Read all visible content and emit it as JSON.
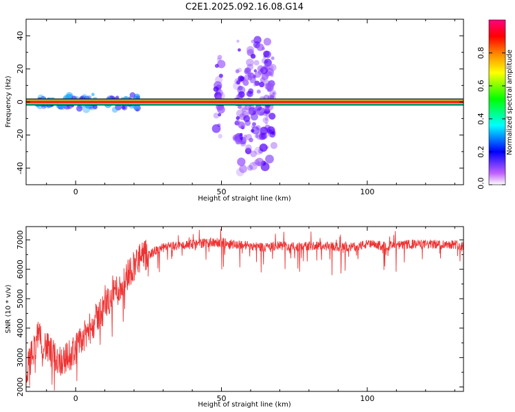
{
  "title": "C2E1.2025.092.16.08.G14",
  "chart_data": [
    {
      "type": "heatmap",
      "xlabel": "Height of straight line (km)",
      "ylabel": "Frequency (Hz)",
      "xlim": [
        -17,
        133
      ],
      "ylim": [
        -50,
        50
      ],
      "xticks": [
        0,
        50,
        100
      ],
      "yticks": [
        -40,
        -20,
        0,
        20,
        40
      ],
      "carrier_band": {
        "frequency_hz": 0,
        "x_range_km": [
          -17,
          133
        ]
      },
      "clusters": [
        {
          "x_range_km": [
            -13,
            -7
          ],
          "freq_half_width_hz": 4,
          "amplitude": 0.35
        },
        {
          "x_range_km": [
            -6,
            7
          ],
          "freq_half_width_hz": 5,
          "amplitude": 0.3
        },
        {
          "x_range_km": [
            11,
            22
          ],
          "freq_half_width_hz": 5,
          "amplitude": 0.3
        },
        {
          "x_range_km": [
            48,
            50
          ],
          "freq_half_width_hz": 33,
          "amplitude": 0.15
        },
        {
          "x_range_km": [
            55,
            68
          ],
          "freq_half_width_hz": 45,
          "amplitude": 0.15
        }
      ],
      "colorbar": {
        "label": "Normalized spectral amplitude",
        "range": [
          0,
          1
        ],
        "ticks": [
          "0.0",
          "0.2",
          "0.4",
          "0.6",
          "0.8"
        ],
        "tick_values": [
          0,
          0.2,
          0.4,
          0.6,
          0.8
        ],
        "colors": [
          "#ffffff",
          "#c060ff",
          "#0000ff",
          "#00ffff",
          "#00ff00",
          "#ffff00",
          "#ff8000",
          "#ff0000",
          "#ff0080"
        ]
      }
    },
    {
      "type": "line",
      "xlabel": "Height of straight line (km)",
      "ylabel": "SNR (10 * v/v)",
      "xlim": [
        -17,
        133
      ],
      "ylim": [
        1850,
        7450
      ],
      "xticks": [
        0,
        50,
        100
      ],
      "yticks": [
        2000,
        3000,
        4000,
        5000,
        6000,
        7000
      ],
      "color": "#ee3333",
      "x": [
        -17,
        -15,
        -13,
        -11,
        -9,
        -7,
        -5,
        -3,
        -1,
        1,
        3,
        5,
        7,
        9,
        11,
        13,
        15,
        17,
        19,
        21,
        23,
        25,
        27,
        29,
        31,
        35,
        40,
        45,
        50,
        55,
        60,
        65,
        70,
        75,
        80,
        85,
        90,
        95,
        100,
        105,
        110,
        115,
        120,
        125,
        130,
        133
      ],
      "y": [
        2500,
        3100,
        3700,
        3500,
        3200,
        3000,
        2900,
        3000,
        3200,
        3400,
        3700,
        4000,
        4300,
        4600,
        4900,
        5300,
        5300,
        5700,
        6000,
        6300,
        6400,
        6500,
        6600,
        6700,
        6750,
        6800,
        6850,
        6900,
        6900,
        6850,
        6800,
        6750,
        6800,
        6750,
        6800,
        6800,
        6750,
        6750,
        6850,
        6800,
        6800,
        6850,
        6850,
        6850,
        6850,
        6800
      ]
    }
  ]
}
